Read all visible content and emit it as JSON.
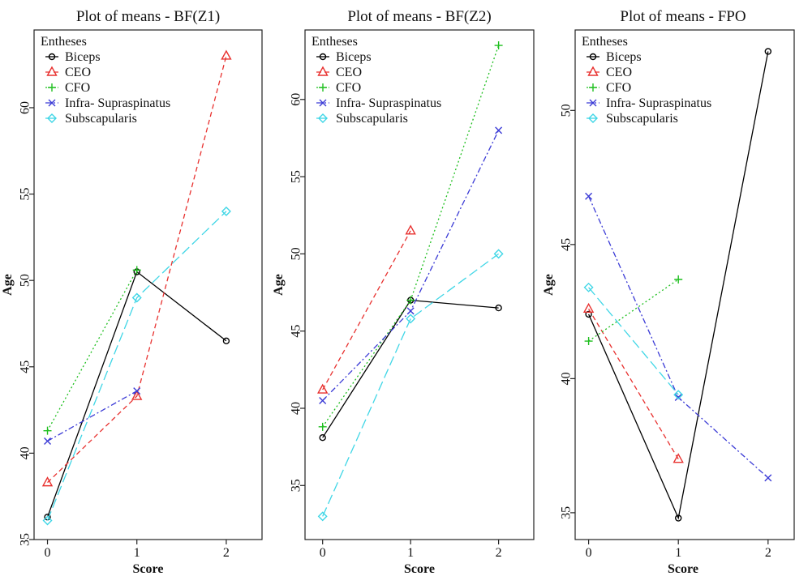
{
  "chart_data": [
    {
      "type": "line",
      "title": "Plot of means - BF(Z1)",
      "xlabel": "Score",
      "ylabel": "Age",
      "x": [
        0,
        1,
        2
      ],
      "xlim": [
        -0.15,
        2.4
      ],
      "ylim": [
        35,
        64.5
      ],
      "yticks": [
        35,
        40,
        45,
        50,
        55,
        60
      ],
      "legend_title": "Entheses",
      "legend_position": "top-left",
      "series": [
        {
          "name": "Biceps",
          "color": "#000000",
          "dash": "solid",
          "marker": "circle",
          "values": [
            36.3,
            50.5,
            46.5
          ]
        },
        {
          "name": "CEO",
          "color": "#e8312f",
          "dash": "dashed",
          "marker": "triangle",
          "values": [
            38.3,
            43.3,
            63.0
          ]
        },
        {
          "name": "CFO",
          "color": "#1fbf1f",
          "dash": "dotted",
          "marker": "plus",
          "values": [
            41.3,
            50.6,
            null
          ]
        },
        {
          "name": "Infra- Supraspinatus",
          "color": "#3b3bd6",
          "dash": "dashdot",
          "marker": "x",
          "values": [
            40.7,
            43.6,
            null
          ]
        },
        {
          "name": "Subscapularis",
          "color": "#3fd6e6",
          "dash": "longdash",
          "marker": "diamond",
          "values": [
            36.1,
            49.0,
            54.0
          ]
        }
      ]
    },
    {
      "type": "line",
      "title": "Plot of means - BF(Z2)",
      "xlabel": "Score",
      "ylabel": "Age",
      "x": [
        0,
        1,
        2
      ],
      "xlim": [
        -0.2,
        2.4
      ],
      "ylim": [
        31.5,
        64.5
      ],
      "yticks": [
        35,
        40,
        45,
        50,
        55,
        60
      ],
      "legend_title": "Entheses",
      "legend_position": "top-left",
      "series": [
        {
          "name": "Biceps",
          "color": "#000000",
          "dash": "solid",
          "marker": "circle",
          "values": [
            38.1,
            47.0,
            46.5
          ]
        },
        {
          "name": "CEO",
          "color": "#e8312f",
          "dash": "dashed",
          "marker": "triangle",
          "values": [
            41.2,
            51.5,
            null
          ]
        },
        {
          "name": "CFO",
          "color": "#1fbf1f",
          "dash": "dotted",
          "marker": "plus",
          "values": [
            38.8,
            47.0,
            63.5
          ]
        },
        {
          "name": "Infra- Supraspinatus",
          "color": "#3b3bd6",
          "dash": "dashdot",
          "marker": "x",
          "values": [
            40.5,
            46.3,
            58.0
          ]
        },
        {
          "name": "Subscapularis",
          "color": "#3fd6e6",
          "dash": "longdash",
          "marker": "diamond",
          "values": [
            33.0,
            45.8,
            50.0
          ]
        }
      ]
    },
    {
      "type": "line",
      "title": "Plot of means - FPO",
      "xlabel": "Score",
      "ylabel": "Age",
      "x": [
        0,
        1,
        2
      ],
      "xlim": [
        -0.15,
        2.3
      ],
      "ylim": [
        34,
        53
      ],
      "yticks": [
        35,
        40,
        45,
        50
      ],
      "legend_title": "Entheses",
      "legend_position": "top-left",
      "series": [
        {
          "name": "Biceps",
          "color": "#000000",
          "dash": "solid",
          "marker": "circle",
          "values": [
            42.4,
            34.8,
            52.2
          ]
        },
        {
          "name": "CEO",
          "color": "#e8312f",
          "dash": "dashed",
          "marker": "triangle",
          "values": [
            42.6,
            37.0,
            null
          ]
        },
        {
          "name": "CFO",
          "color": "#1fbf1f",
          "dash": "dotted",
          "marker": "plus",
          "values": [
            41.4,
            43.7,
            null
          ]
        },
        {
          "name": "Infra- Supraspinatus",
          "color": "#3b3bd6",
          "dash": "dashdot",
          "marker": "x",
          "values": [
            46.8,
            39.3,
            36.3
          ]
        },
        {
          "name": "Subscapularis",
          "color": "#3fd6e6",
          "dash": "longdash",
          "marker": "diamond",
          "values": [
            43.4,
            39.4,
            null
          ]
        }
      ]
    }
  ]
}
